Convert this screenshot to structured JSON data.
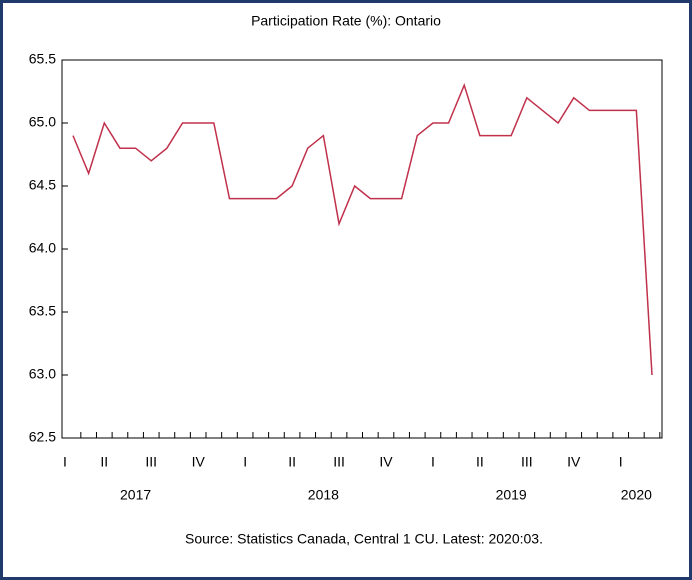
{
  "chart_data": {
    "type": "line",
    "title": "Participation Rate (%): Ontario",
    "source": "Source: Statistics Canada, Central 1 CU. Latest: 2020:03.",
    "categories": [
      "I",
      null,
      "II",
      null,
      null,
      "III",
      null,
      null,
      "IV",
      null,
      null,
      "I",
      null,
      null,
      "II",
      null,
      null,
      "III",
      null,
      null,
      "IV",
      null,
      null,
      "I",
      null,
      null,
      "II",
      null,
      null,
      "III",
      null,
      null,
      "IV",
      null,
      null,
      "I",
      null,
      null
    ],
    "year_categories": [
      null,
      null,
      null,
      null,
      "2017",
      null,
      null,
      null,
      null,
      null,
      null,
      null,
      null,
      null,
      null,
      null,
      "2018",
      null,
      null,
      null,
      null,
      null,
      null,
      null,
      null,
      null,
      null,
      null,
      "2019",
      null,
      null,
      null,
      null,
      null,
      null,
      null,
      "2020",
      null
    ],
    "series": [
      {
        "name": "Participation Rate",
        "color": "#c0314b",
        "values": [
          64.9,
          64.6,
          65.0,
          64.8,
          64.8,
          64.7,
          64.8,
          65.0,
          65.0,
          65.0,
          64.4,
          64.4,
          64.4,
          64.4,
          64.5,
          64.8,
          64.9,
          64.2,
          64.5,
          64.4,
          64.4,
          64.4,
          64.9,
          65.0,
          65.0,
          65.3,
          64.9,
          64.9,
          64.9,
          65.2,
          65.1,
          65.0,
          65.2,
          65.1,
          65.1,
          65.1,
          65.1,
          63.0
        ]
      }
    ],
    "ylim": [
      62.5,
      65.5
    ],
    "yticks": [
      {
        "value": 62.5,
        "label": "62.5"
      },
      {
        "value": 63,
        "label": "63.0"
      },
      {
        "value": 63.5,
        "label": "63.5"
      },
      {
        "value": 64,
        "label": "64.0"
      },
      {
        "value": 64.5,
        "label": "64.5"
      },
      {
        "value": 65,
        "label": "65.0"
      },
      {
        "value": 65.5,
        "label": "65.5"
      }
    ],
    "grid": false
  }
}
